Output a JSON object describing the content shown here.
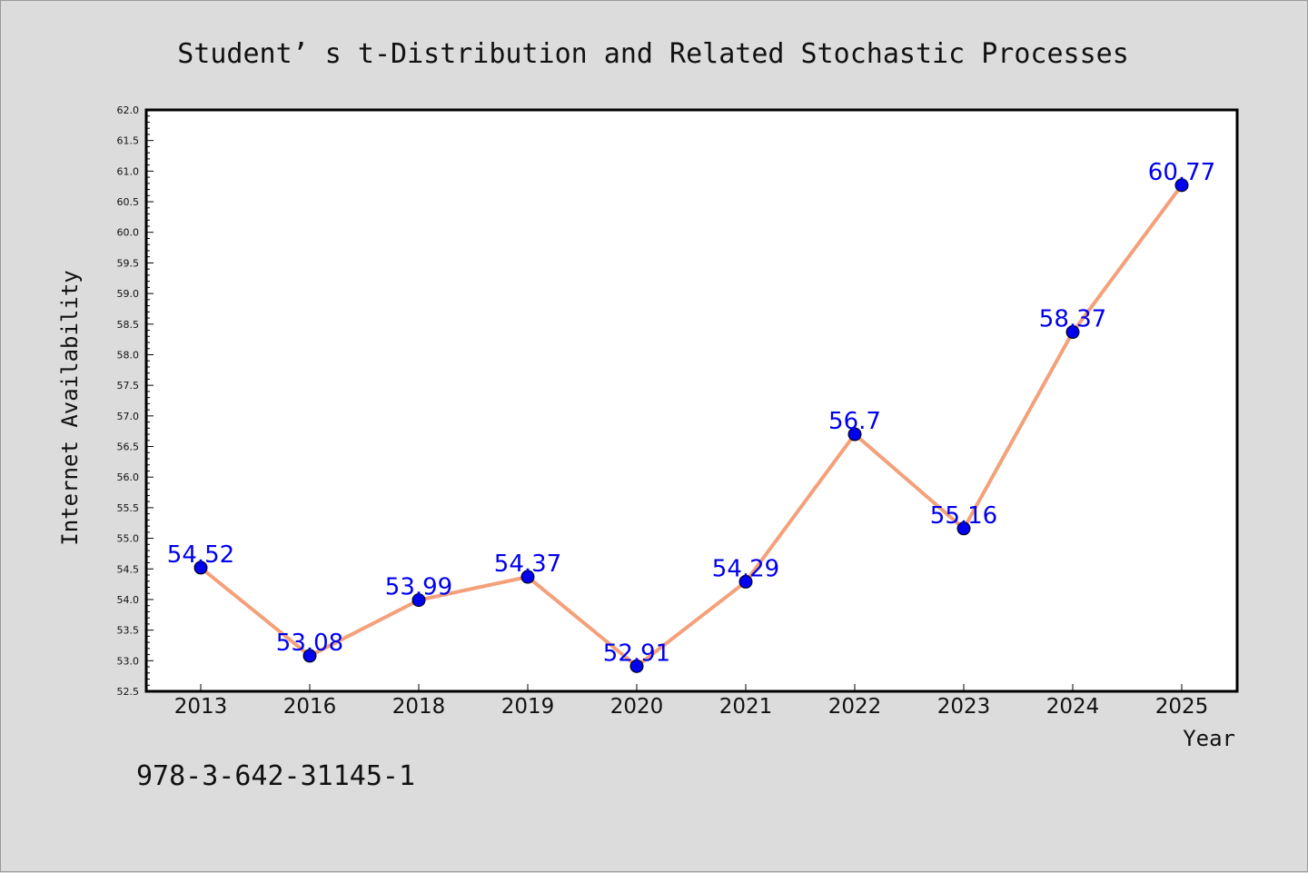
{
  "chart_data": {
    "type": "line",
    "title": "Student’ s t-Distribution and Related Stochastic Processes",
    "xlabel": "Year",
    "ylabel": "Internet Availability",
    "categories": [
      "2013",
      "2016",
      "2018",
      "2019",
      "2020",
      "2021",
      "2022",
      "2023",
      "2024",
      "2025"
    ],
    "series": [
      {
        "values": [
          54.52,
          53.08,
          53.99,
          54.37,
          52.91,
          54.29,
          56.7,
          55.16,
          58.37,
          60.77
        ],
        "data_labels": [
          "54.52",
          "53.08",
          "53.99",
          "54.37",
          "52.91",
          "54.29",
          "56.7",
          "55.16",
          "58.37",
          "60.77"
        ],
        "line_color": "#f4a07a",
        "marker_color": "#0000ee"
      }
    ],
    "ylim": [
      52.5,
      62.0
    ],
    "yticks": [
      "52.5",
      "53.0",
      "53.5",
      "54.0",
      "54.5",
      "55.0",
      "55.5",
      "56.0",
      "56.5",
      "57.0",
      "57.5",
      "58.0",
      "58.5",
      "59.0",
      "59.5",
      "60.0",
      "60.5",
      "61.0",
      "61.5",
      "62.0"
    ],
    "grid": false,
    "legend": "none"
  },
  "footer": {
    "isbn": "978-3-642-31145-1"
  },
  "colors": {
    "background": "#dcdcdc",
    "plot_area": "#ffffff",
    "line": "#f4a07a",
    "marker": "#0000ee",
    "data_label": "#0000ee"
  }
}
